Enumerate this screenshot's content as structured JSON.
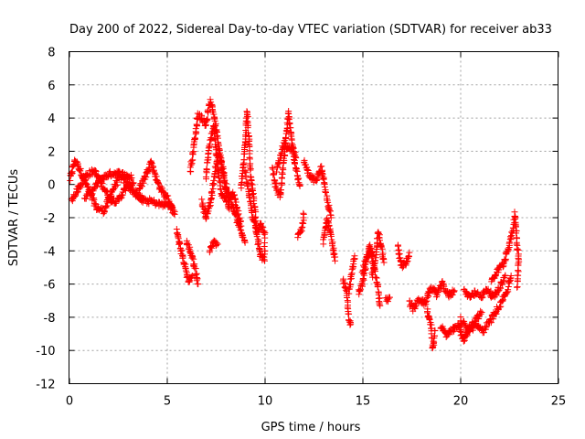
{
  "chart_data": {
    "type": "scatter",
    "title": "Day 200 of 2022, Sidereal Day-to-day VTEC variation (SDTVAR) for receiver ab33",
    "xlabel": "GPS time / hours",
    "ylabel": "SDTVAR / TECUs",
    "xlim": [
      0,
      25
    ],
    "ylim": [
      -12,
      8
    ],
    "xticks": [
      0,
      5,
      10,
      15,
      20,
      25
    ],
    "yticks": [
      -12,
      -10,
      -8,
      -6,
      -4,
      -2,
      0,
      2,
      4,
      6,
      8
    ],
    "xtick_labels": [
      "0",
      "5",
      "10",
      "15",
      "20",
      "25"
    ],
    "ytick_labels": [
      "-12",
      "-10",
      "-8",
      "-6",
      "-4",
      "-2",
      "0",
      "2",
      "4",
      "6",
      "8"
    ],
    "grid": true,
    "marker": "+",
    "color": "#ff0000",
    "series": [
      {
        "name": "ab33",
        "tracks": [
          [
            [
              0.05,
              0.3
            ],
            [
              0.3,
              1.5
            ],
            [
              0.6,
              0.8
            ],
            [
              1.0,
              -0.3
            ],
            [
              1.4,
              -1.4
            ],
            [
              1.8,
              -1.6
            ],
            [
              2.2,
              -0.4
            ],
            [
              2.6,
              0.5
            ],
            [
              3.0,
              0.0
            ],
            [
              3.4,
              -0.6
            ],
            [
              3.8,
              -0.9
            ]
          ],
          [
            [
              0.1,
              -1.0
            ],
            [
              0.5,
              -0.2
            ],
            [
              0.9,
              0.6
            ],
            [
              1.3,
              0.8
            ],
            [
              1.7,
              0.0
            ],
            [
              2.1,
              -0.9
            ],
            [
              2.5,
              -1.0
            ],
            [
              2.9,
              -0.2
            ],
            [
              3.3,
              0.1
            ]
          ],
          [
            [
              0.8,
              -0.8
            ],
            [
              1.2,
              -0.4
            ],
            [
              1.6,
              0.3
            ],
            [
              2.0,
              0.6
            ],
            [
              2.4,
              0.7
            ],
            [
              2.8,
              0.6
            ],
            [
              3.2,
              0.4
            ]
          ],
          [
            [
              3.6,
              -0.3
            ],
            [
              3.9,
              0.5
            ],
            [
              4.2,
              1.4
            ],
            [
              4.5,
              0.2
            ],
            [
              4.8,
              -0.5
            ],
            [
              5.1,
              -0.9
            ],
            [
              5.4,
              -1.8
            ]
          ],
          [
            [
              3.4,
              -0.5
            ],
            [
              3.8,
              -1.0
            ],
            [
              4.2,
              -1.0
            ],
            [
              4.6,
              -1.2
            ],
            [
              5.0,
              -1.2
            ],
            [
              5.3,
              -1.4
            ]
          ],
          [
            [
              5.5,
              -2.8
            ],
            [
              5.7,
              -3.8
            ],
            [
              5.9,
              -4.8
            ],
            [
              6.1,
              -5.8
            ],
            [
              6.3,
              -5.5
            ]
          ],
          [
            [
              6.0,
              -3.5
            ],
            [
              6.2,
              -4.0
            ],
            [
              6.4,
              -4.8
            ],
            [
              6.6,
              -6.0
            ]
          ],
          [
            [
              6.2,
              0.8
            ],
            [
              6.4,
              2.5
            ],
            [
              6.6,
              4.2
            ],
            [
              6.8,
              4.0
            ],
            [
              7.0,
              3.6
            ],
            [
              7.2,
              5.0
            ],
            [
              7.4,
              4.3
            ],
            [
              7.6,
              2.8
            ],
            [
              7.8,
              1.0
            ],
            [
              8.0,
              -0.2
            ],
            [
              8.3,
              -1.2
            ],
            [
              8.5,
              -1.8
            ],
            [
              8.8,
              -2.8
            ],
            [
              9.0,
              -3.5
            ]
          ],
          [
            [
              6.8,
              -1.0
            ],
            [
              7.0,
              -2.0
            ],
            [
              7.2,
              -1.2
            ],
            [
              7.4,
              0.2
            ],
            [
              7.6,
              1.8
            ],
            [
              7.8,
              1.5
            ],
            [
              8.0,
              0.0
            ],
            [
              8.2,
              -0.8
            ],
            [
              8.4,
              -0.5
            ],
            [
              8.6,
              -1.5
            ],
            [
              8.8,
              -2.5
            ]
          ],
          [
            [
              7.0,
              0.5
            ],
            [
              7.2,
              2.5
            ],
            [
              7.4,
              3.5
            ],
            [
              7.6,
              1.0
            ],
            [
              7.8,
              -0.6
            ],
            [
              8.0,
              -0.8
            ],
            [
              8.2,
              -1.5
            ]
          ],
          [
            [
              7.2,
              -4.0
            ],
            [
              7.4,
              -3.5
            ],
            [
              7.6,
              -3.6
            ]
          ],
          [
            [
              8.8,
              -0.2
            ],
            [
              9.0,
              2.3
            ],
            [
              9.1,
              4.5
            ],
            [
              9.3,
              0.5
            ],
            [
              9.5,
              -1.5
            ],
            [
              9.6,
              -3.0
            ],
            [
              9.8,
              -4.3
            ],
            [
              10.0,
              -4.6
            ]
          ],
          [
            [
              9.0,
              0.8
            ],
            [
              9.2,
              -0.6
            ],
            [
              9.4,
              -2.0
            ],
            [
              9.6,
              -2.8
            ],
            [
              9.8,
              -2.4
            ],
            [
              10.0,
              -3.0
            ],
            [
              10.0,
              -4.2
            ]
          ],
          [
            [
              10.4,
              1.0
            ],
            [
              10.6,
              -0.3
            ],
            [
              10.8,
              -0.7
            ],
            [
              11.0,
              1.5
            ],
            [
              11.2,
              4.3
            ],
            [
              11.4,
              2.6
            ],
            [
              11.6,
              0.9
            ],
            [
              11.8,
              -0.1
            ]
          ],
          [
            [
              10.6,
              0.9
            ],
            [
              10.8,
              1.6
            ],
            [
              11.0,
              2.5
            ],
            [
              11.2,
              2.1
            ],
            [
              11.4,
              2.2
            ],
            [
              11.6,
              1.6
            ]
          ],
          [
            [
              11.7,
              -3.2
            ],
            [
              11.9,
              -2.6
            ],
            [
              12.0,
              -1.8
            ]
          ],
          [
            [
              12.0,
              1.5
            ],
            [
              12.3,
              0.5
            ],
            [
              12.6,
              0.2
            ],
            [
              12.9,
              1.0
            ],
            [
              13.2,
              -1.0
            ],
            [
              13.4,
              -2.0
            ]
          ],
          [
            [
              13.0,
              -3.5
            ],
            [
              13.2,
              -2.0
            ],
            [
              13.4,
              -3.0
            ],
            [
              13.6,
              -4.6
            ]
          ],
          [
            [
              14.0,
              -5.8
            ],
            [
              14.2,
              -6.5
            ],
            [
              14.3,
              -8.0
            ],
            [
              14.4,
              -8.4
            ]
          ],
          [
            [
              14.3,
              -6.5
            ],
            [
              14.5,
              -5.0
            ],
            [
              14.6,
              -4.3
            ]
          ],
          [
            [
              14.8,
              -6.5
            ],
            [
              15.0,
              -6.0
            ],
            [
              15.2,
              -4.7
            ],
            [
              15.4,
              -3.6
            ],
            [
              15.5,
              -4.3
            ]
          ],
          [
            [
              15.0,
              -5.2
            ],
            [
              15.2,
              -4.5
            ],
            [
              15.4,
              -4.0
            ],
            [
              15.6,
              -5.0
            ],
            [
              15.8,
              -6.2
            ],
            [
              15.9,
              -7.3
            ]
          ],
          [
            [
              15.5,
              -5.5
            ],
            [
              15.7,
              -4.4
            ],
            [
              15.8,
              -2.8
            ],
            [
              16.0,
              -4.0
            ],
            [
              16.1,
              -4.7
            ]
          ],
          [
            [
              16.2,
              -7.0
            ],
            [
              16.4,
              -6.8
            ]
          ],
          [
            [
              16.8,
              -3.8
            ],
            [
              17.0,
              -4.9
            ],
            [
              17.2,
              -4.8
            ],
            [
              17.4,
              -4.1
            ]
          ],
          [
            [
              17.4,
              -7.1
            ],
            [
              17.6,
              -7.5
            ],
            [
              17.9,
              -6.9
            ],
            [
              18.2,
              -7.2
            ],
            [
              18.5,
              -6.2
            ],
            [
              18.8,
              -6.6
            ],
            [
              19.1,
              -6.0
            ],
            [
              19.4,
              -6.7
            ],
            [
              19.7,
              -6.4
            ]
          ],
          [
            [
              18.3,
              -7.5
            ],
            [
              18.5,
              -8.5
            ],
            [
              18.6,
              -9.9
            ],
            [
              18.7,
              -8.8
            ]
          ],
          [
            [
              19.0,
              -8.5
            ],
            [
              19.3,
              -9.1
            ],
            [
              19.6,
              -8.8
            ],
            [
              19.9,
              -8.5
            ],
            [
              20.2,
              -9.4
            ],
            [
              20.5,
              -8.6
            ],
            [
              20.8,
              -8.1
            ],
            [
              21.1,
              -7.7
            ]
          ],
          [
            [
              20.2,
              -6.4
            ],
            [
              20.5,
              -6.8
            ],
            [
              20.8,
              -6.5
            ],
            [
              21.1,
              -6.7
            ],
            [
              21.4,
              -6.3
            ],
            [
              21.7,
              -6.8
            ],
            [
              22.0,
              -6.2
            ],
            [
              22.3,
              -5.5
            ]
          ],
          [
            [
              20.0,
              -8.1
            ],
            [
              20.4,
              -8.8
            ],
            [
              20.8,
              -8.5
            ],
            [
              21.2,
              -8.8
            ],
            [
              21.6,
              -8.1
            ],
            [
              22.0,
              -7.3
            ],
            [
              22.4,
              -6.4
            ],
            [
              22.6,
              -5.5
            ]
          ],
          [
            [
              21.6,
              -5.8
            ],
            [
              21.9,
              -5.2
            ],
            [
              22.2,
              -4.8
            ],
            [
              22.5,
              -3.6
            ],
            [
              22.7,
              -2.8
            ],
            [
              22.8,
              -1.7
            ],
            [
              22.9,
              -3.5
            ],
            [
              23.0,
              -4.5
            ],
            [
              22.9,
              -6.2
            ]
          ]
        ]
      }
    ]
  }
}
